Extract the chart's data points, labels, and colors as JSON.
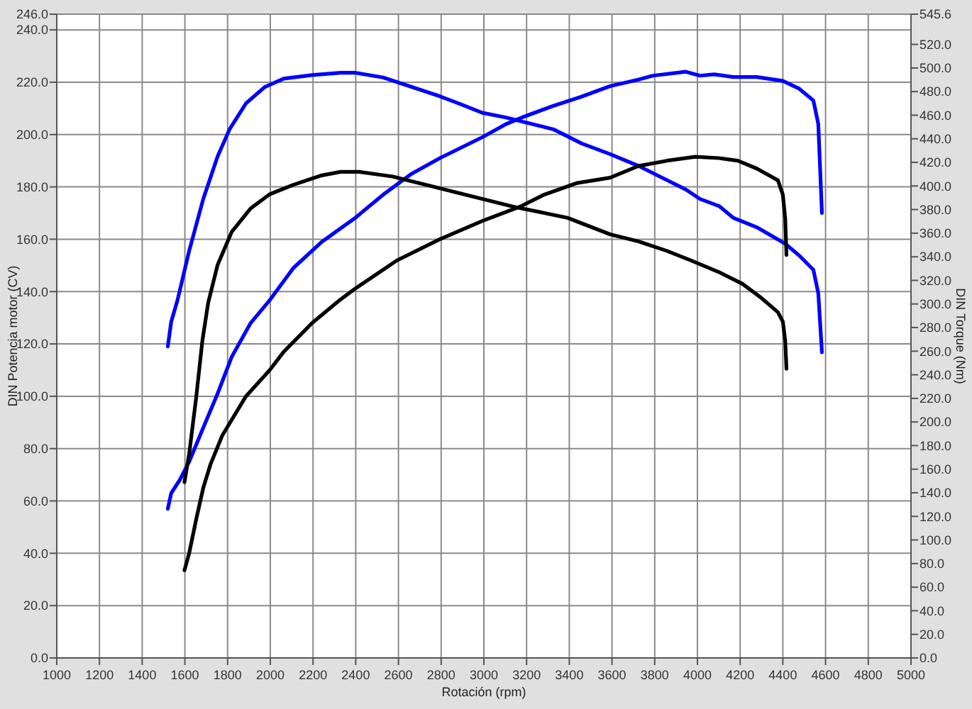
{
  "chart_data": {
    "type": "line",
    "xlabel": "Rotación (rpm)",
    "ylabel": "DIN Potencia motor (CV)",
    "y2label": "DIN Torque (Nm)",
    "xlim": [
      1000,
      5000
    ],
    "xticks": [
      1000,
      1200,
      1400,
      1600,
      1800,
      2000,
      2200,
      2400,
      2600,
      2800,
      3000,
      3200,
      3400,
      3600,
      3800,
      4000,
      4200,
      4400,
      4600,
      4800,
      5000
    ],
    "ylim": [
      0,
      246
    ],
    "yticks": [
      {
        "value": 0,
        "label": "0.0"
      },
      {
        "value": 20,
        "label": "20.0"
      },
      {
        "value": 40,
        "label": "40.0"
      },
      {
        "value": 60,
        "label": "60.0"
      },
      {
        "value": 80,
        "label": "80.0"
      },
      {
        "value": 100,
        "label": "100.0"
      },
      {
        "value": 120,
        "label": "120.0"
      },
      {
        "value": 140,
        "label": "140.0"
      },
      {
        "value": 160,
        "label": "160.0"
      },
      {
        "value": 180,
        "label": "180.0"
      },
      {
        "value": 200,
        "label": "200.0"
      },
      {
        "value": 220,
        "label": "220.0"
      },
      {
        "value": 240,
        "label": "240.0"
      },
      {
        "value": 246,
        "label": "246.0"
      }
    ],
    "y2lim": [
      0,
      545.6
    ],
    "y2ticks": [
      {
        "value": 0,
        "label": "0.0"
      },
      {
        "value": 20,
        "label": "20.0"
      },
      {
        "value": 40,
        "label": "40.0"
      },
      {
        "value": 60,
        "label": "60.0"
      },
      {
        "value": 80,
        "label": "80.0"
      },
      {
        "value": 100,
        "label": "100.0"
      },
      {
        "value": 120,
        "label": "120.0"
      },
      {
        "value": 140,
        "label": "140.0"
      },
      {
        "value": 160,
        "label": "160.0"
      },
      {
        "value": 180,
        "label": "180.0"
      },
      {
        "value": 200,
        "label": "200.0"
      },
      {
        "value": 220,
        "label": "220.0"
      },
      {
        "value": 240,
        "label": "240.0"
      },
      {
        "value": 260,
        "label": "260.0"
      },
      {
        "value": 280,
        "label": "280.0"
      },
      {
        "value": 300,
        "label": "300.0"
      },
      {
        "value": 320,
        "label": "320.0"
      },
      {
        "value": 340,
        "label": "340.0"
      },
      {
        "value": 360,
        "label": "360.0"
      },
      {
        "value": 380,
        "label": "380.0"
      },
      {
        "value": 400,
        "label": "400.0"
      },
      {
        "value": 420,
        "label": "420.0"
      },
      {
        "value": 440,
        "label": "440.0"
      },
      {
        "value": 460,
        "label": "460.0"
      },
      {
        "value": 480,
        "label": "480.0"
      },
      {
        "value": 500,
        "label": "500.0"
      },
      {
        "value": 520,
        "label": "520.0"
      },
      {
        "value": 545.6,
        "label": "545.6"
      }
    ],
    "grid": true,
    "series": [
      {
        "color": "#0000ff",
        "x": [
          1520,
          1536,
          1576,
          1620,
          1686,
          1753,
          1819,
          1908,
          2000,
          2108,
          2241,
          2395,
          2528,
          2661,
          2794,
          2993,
          3104,
          3193,
          3326,
          3458,
          3591,
          3724,
          3791,
          3946,
          4012,
          4078,
          4167,
          4278,
          4400,
          4477,
          4543,
          4566,
          4583
        ],
        "values": [
          57,
          63,
          68,
          75,
          88,
          101,
          115,
          128,
          137,
          149,
          159,
          168,
          177,
          185,
          191,
          199,
          204,
          207,
          211,
          214.5,
          218.5,
          221,
          222.5,
          224,
          222.5,
          223,
          222,
          222,
          220.5,
          217.5,
          213,
          204,
          170
        ]
      },
      {
        "color": "#0000ff",
        "axis": "y2",
        "x": [
          1520,
          1536,
          1565,
          1620,
          1686,
          1753,
          1809,
          1886,
          1975,
          2063,
          2196,
          2329,
          2395,
          2528,
          2661,
          2794,
          2882,
          2993,
          3104,
          3193,
          3326,
          3458,
          3591,
          3724,
          3857,
          3946,
          4012,
          4101,
          4168,
          4278,
          4411,
          4477,
          4543,
          4566,
          4583
        ],
        "values": [
          264,
          285,
          303,
          345,
          389,
          425,
          448,
          470,
          484,
          491,
          494,
          496,
          496,
          492,
          484,
          476,
          470,
          462,
          458,
          454,
          448,
          436,
          427,
          417,
          405,
          397,
          389,
          383,
          373,
          365,
          351,
          341,
          329,
          309,
          259
        ]
      },
      {
        "color": "#000000",
        "x": [
          1598,
          1620,
          1653,
          1686,
          1720,
          1775,
          1886,
          1997,
          2063,
          2196,
          2329,
          2395,
          2595,
          2794,
          2993,
          3171,
          3281,
          3437,
          3591,
          3724,
          3857,
          3990,
          4101,
          4189,
          4278,
          4377,
          4400,
          4411,
          4417
        ],
        "values": [
          33.5,
          40,
          53,
          65,
          74,
          85,
          100,
          110,
          117,
          128,
          137,
          141,
          152,
          160,
          167,
          172.5,
          177,
          181.5,
          183.5,
          188,
          190,
          191.5,
          191,
          190,
          187,
          182.5,
          177,
          168,
          154
        ]
      },
      {
        "color": "#000000",
        "axis": "y2",
        "x": [
          1598,
          1620,
          1653,
          1682,
          1709,
          1753,
          1819,
          1908,
          1997,
          2108,
          2241,
          2329,
          2417,
          2573,
          2750,
          2882,
          3015,
          3148,
          3259,
          3392,
          3591,
          3724,
          3857,
          3968,
          4101,
          4211,
          4300,
          4377,
          4400,
          4411,
          4417
        ],
        "values": [
          149,
          173,
          221,
          269,
          301,
          333,
          361,
          381,
          393,
          401,
          409,
          412,
          412,
          408,
          400,
          394,
          388,
          382,
          378,
          373,
          359,
          353,
          345,
          337,
          327,
          317,
          305,
          293,
          285,
          269,
          245
        ]
      }
    ]
  }
}
